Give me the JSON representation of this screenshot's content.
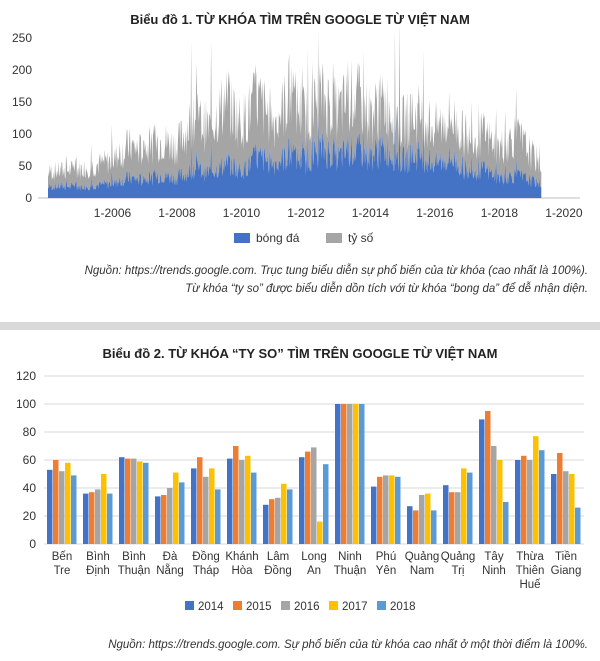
{
  "chart1": {
    "title": "Biểu đồ 1. TỪ KHÓA TÌM TRÊN GOOGLE TỪ VIỆT NAM",
    "yticks": [
      "0",
      "50",
      "100",
      "150",
      "200",
      "250"
    ],
    "xticks": [
      "1-2006",
      "1-2008",
      "1-2010",
      "1-2012",
      "1-2014",
      "1-2016",
      "1-2018",
      "1-2020"
    ],
    "legend": [
      "bóng đá",
      "tỷ số"
    ],
    "colors": {
      "bong_da": "#4472c4",
      "ty_so": "#a5a5a5"
    },
    "note_line1": "Nguồn: https://trends.google.com. Trục tung biểu diễn sự phổ biến của từ khóa (cao nhất là 100%).",
    "note_line2": "Từ khóa “ty so” được biểu diễn dồn tích với từ khóa “bong da” để dễ nhận diện."
  },
  "chart2": {
    "title": "Biểu đồ 2. TỪ KHÓA “TY SO” TÌM TRÊN GOOGLE TỪ VIỆT NAM",
    "yticks": [
      "0",
      "20",
      "40",
      "60",
      "80",
      "100",
      "120"
    ],
    "category_lines": [
      [
        "Bến",
        "Tre"
      ],
      [
        "Bình",
        "Định"
      ],
      [
        "Bình",
        "Thuận"
      ],
      [
        "Đà",
        "Nẵng"
      ],
      [
        "Đồng",
        "Tháp"
      ],
      [
        "Khánh",
        "Hòa"
      ],
      [
        "Lâm",
        "Đồng"
      ],
      [
        "Long",
        "An"
      ],
      [
        "Ninh",
        "Thuận"
      ],
      [
        "Phú",
        "Yên"
      ],
      [
        "Quảng",
        "Nam"
      ],
      [
        "Quảng",
        "Trị"
      ],
      [
        "Tây",
        "Ninh"
      ],
      [
        "Thừa",
        "Thiên",
        "Huế"
      ],
      [
        "Tiền",
        "Giang"
      ]
    ],
    "legend": [
      "2014",
      "2015",
      "2016",
      "2017",
      "2018"
    ],
    "note": "Nguồn: https://trends.google.com. Sự phổ biến của từ khóa cao nhất ở một thời điểm là 100%."
  },
  "chart_data": [
    {
      "type": "area",
      "title": "Biểu đồ 1. TỪ KHÓA TÌM TRÊN GOOGLE TỪ VIỆT NAM",
      "stacked": true,
      "x": [
        2004.0,
        2005.0,
        2006.0,
        2006.5,
        2007.0,
        2007.5,
        2008.0,
        2008.5,
        2009.0,
        2009.5,
        2010.0,
        2010.5,
        2011.0,
        2011.5,
        2012.0,
        2012.5,
        2013.0,
        2013.5,
        2014.0,
        2014.5,
        2015.0,
        2015.5,
        2016.0,
        2016.5,
        2017.0,
        2017.5,
        2018.0,
        2018.5,
        2019.0,
        2019.3
      ],
      "series": [
        {
          "name": "bóng đá",
          "values": [
            20,
            20,
            25,
            35,
            30,
            40,
            35,
            50,
            45,
            60,
            50,
            70,
            60,
            75,
            65,
            85,
            70,
            85,
            75,
            85,
            65,
            75,
            60,
            70,
            45,
            50,
            35,
            40,
            30,
            25
          ]
        },
        {
          "name": "tỷ số",
          "values": [
            25,
            30,
            40,
            55,
            50,
            60,
            55,
            90,
            75,
            110,
            80,
            100,
            70,
            100,
            75,
            90,
            80,
            95,
            70,
            80,
            65,
            70,
            60,
            70,
            55,
            60,
            50,
            70,
            45,
            35
          ]
        }
      ],
      "ylim": [
        0,
        250
      ],
      "grid": false,
      "legend_position": "bottom"
    },
    {
      "type": "bar",
      "title": "Biểu đồ 2. TỪ KHÓA “TY SO” TÌM TRÊN GOOGLE TỪ VIỆT NAM",
      "categories": [
        "Bến Tre",
        "Bình Định",
        "Bình Thuận",
        "Đà Nẵng",
        "Đồng Tháp",
        "Khánh Hòa",
        "Lâm Đồng",
        "Long An",
        "Ninh Thuận",
        "Phú Yên",
        "Quảng Nam",
        "Quảng Trị",
        "Tây Ninh",
        "Thừa Thiên Huế",
        "Tiền Giang"
      ],
      "series": [
        {
          "name": "2014",
          "color": "#4472c4",
          "values": [
            53,
            36,
            62,
            34,
            54,
            61,
            28,
            62,
            100,
            41,
            27,
            42,
            89,
            60,
            50
          ]
        },
        {
          "name": "2015",
          "color": "#ed7d31",
          "values": [
            60,
            37,
            61,
            35,
            62,
            70,
            32,
            66,
            100,
            48,
            24,
            37,
            95,
            63,
            65
          ]
        },
        {
          "name": "2016",
          "color": "#a5a5a5",
          "values": [
            52,
            39,
            61,
            40,
            48,
            60,
            33,
            69,
            100,
            49,
            35,
            37,
            70,
            60,
            52
          ]
        },
        {
          "name": "2017",
          "color": "#ffc000",
          "values": [
            58,
            50,
            59,
            51,
            54,
            63,
            43,
            16,
            100,
            49,
            36,
            54,
            60,
            77,
            50
          ]
        },
        {
          "name": "2018",
          "color": "#5b9bd5",
          "values": [
            49,
            36,
            58,
            44,
            39,
            51,
            39,
            57,
            100,
            48,
            24,
            51,
            30,
            67,
            26
          ]
        }
      ],
      "ylim": [
        0,
        120
      ],
      "grid": true,
      "legend_position": "bottom"
    }
  ]
}
